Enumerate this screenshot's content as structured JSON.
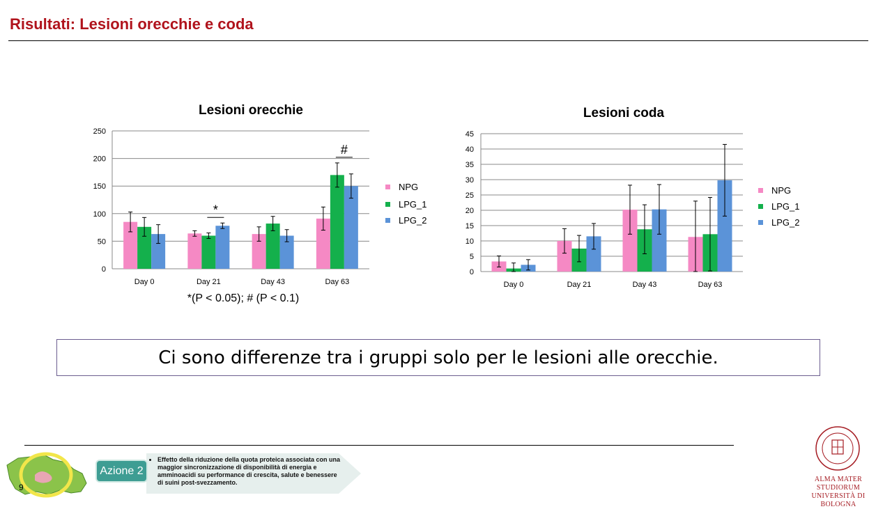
{
  "slide": {
    "title": "Risultati: Lesioni orecchie e coda",
    "conclusion": "Ci sono differenze tra i gruppi solo per le lesioni alle orecchie.",
    "page_number": "9",
    "footer": {
      "action_label": "Azione 2",
      "action_text": "Effetto della riduzione della quota proteica associata con una maggior sincronizzazione di disponibilità di energia e amminoacidi su performance di crescita, salute e benessere di suini post-svezzamento."
    },
    "university": {
      "line1": "ALMA MATER STUDIORUM",
      "line2": "UNIVERSITÀ DI BOLOGNA"
    }
  },
  "colors": {
    "NPG": "#f589c4",
    "LPG_1": "#14b04c",
    "LPG_2": "#5b93d8",
    "title": "#b0131c"
  },
  "chart_data": [
    {
      "type": "bar",
      "title": "Lesioni orecchie",
      "categories": [
        "Day 0",
        "Day 21",
        "Day 43",
        "Day 63"
      ],
      "series": [
        {
          "name": "NPG",
          "values": [
            85,
            64,
            63,
            91
          ],
          "errors": [
            18,
            5,
            13,
            21
          ]
        },
        {
          "name": "LPG_1",
          "values": [
            76,
            60,
            82,
            170
          ],
          "errors": [
            17,
            5,
            13,
            22
          ]
        },
        {
          "name": "LPG_2",
          "values": [
            63,
            78,
            60,
            150
          ],
          "errors": [
            17,
            5,
            11,
            22
          ]
        }
      ],
      "ylim": [
        0,
        250
      ],
      "yticks": [
        0,
        50,
        100,
        150,
        200,
        250
      ],
      "annotations": [
        {
          "category": "Day 21",
          "text": "*"
        },
        {
          "category": "Day 63",
          "text": "#"
        }
      ],
      "footnote": "*(P < 0.05); # (P < 0.1)",
      "legend": "right"
    },
    {
      "type": "bar",
      "title": "Lesioni coda",
      "categories": [
        "Day 0",
        "Day 21",
        "Day 43",
        "Day 63"
      ],
      "series": [
        {
          "name": "NPG",
          "values": [
            3.3,
            10,
            20.2,
            11.3
          ],
          "errors": [
            1.8,
            4,
            8,
            11.7
          ]
        },
        {
          "name": "LPG_1",
          "values": [
            1,
            7.5,
            13.8,
            12.2
          ],
          "errors": [
            1.8,
            4.3,
            8,
            12
          ]
        },
        {
          "name": "LPG_2",
          "values": [
            2.2,
            11.5,
            20.3,
            29.8
          ],
          "errors": [
            1.7,
            4.2,
            8.1,
            11.7
          ]
        }
      ],
      "ylim": [
        0,
        45
      ],
      "yticks": [
        0,
        5,
        10,
        15,
        20,
        25,
        30,
        35,
        40,
        45
      ],
      "legend": "right"
    }
  ]
}
